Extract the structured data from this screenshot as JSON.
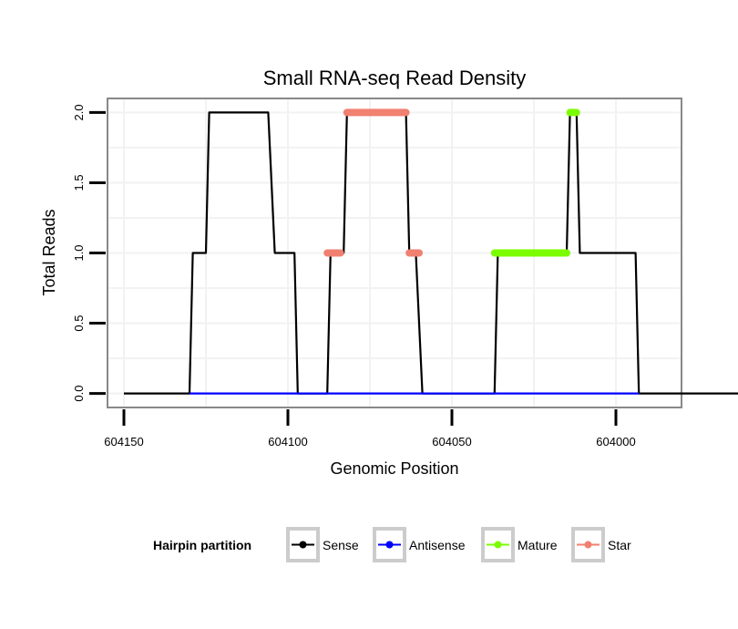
{
  "chart_data": {
    "type": "line",
    "title": "Small RNA-seq Read Density",
    "xlabel": "Genomic Position",
    "ylabel": "Total Reads",
    "x_reversed": true,
    "xlim": [
      604155,
      603980
    ],
    "ylim": [
      -0.1,
      2.1
    ],
    "x_ticks": [
      604150,
      604100,
      604050,
      604000
    ],
    "y_ticks": [
      0.0,
      0.5,
      1.0,
      1.5,
      2.0
    ],
    "y_tick_labels": [
      "0.0",
      "0.5",
      "1.0",
      "1.5",
      "2.0"
    ],
    "legend": {
      "title": "Hairpin partition",
      "position": "bottom",
      "entries": [
        "Sense",
        "Antisense",
        "Mature",
        "Star"
      ]
    },
    "series": [
      {
        "name": "Sense",
        "color": "#000000",
        "style": "line",
        "points": [
          [
            604150,
            0
          ],
          [
            604130,
            0
          ],
          [
            604129,
            1
          ],
          [
            604125,
            1
          ],
          [
            604124,
            2
          ],
          [
            604106,
            2
          ],
          [
            604104,
            1
          ],
          [
            604098,
            1
          ],
          [
            604097,
            0
          ],
          [
            604088,
            0
          ],
          [
            604087,
            1
          ],
          [
            604083,
            1
          ],
          [
            604082,
            2
          ],
          [
            604064,
            2
          ],
          [
            604063,
            1
          ],
          [
            604061,
            1
          ],
          [
            604059,
            0
          ],
          [
            604037,
            0
          ],
          [
            604036,
            1
          ],
          [
            604015,
            1
          ],
          [
            604014,
            2
          ],
          [
            604012,
            2
          ],
          [
            604011,
            1
          ],
          [
            603994,
            1
          ],
          [
            603993,
            0
          ],
          [
            603962,
            0
          ]
        ]
      },
      {
        "name": "Antisense",
        "color": "#0000ff",
        "style": "line",
        "points": [
          [
            604130,
            0
          ],
          [
            603993,
            0
          ]
        ]
      },
      {
        "name": "Mature",
        "color": "#7cfc00",
        "style": "thick",
        "segments": [
          [
            [
              604037,
              1
            ],
            [
              604015,
              1
            ]
          ],
          [
            [
              604014,
              2
            ],
            [
              604012,
              2
            ]
          ]
        ]
      },
      {
        "name": "Star",
        "color": "#f08070",
        "style": "thick",
        "segments": [
          [
            [
              604088,
              1
            ],
            [
              604084,
              1
            ]
          ],
          [
            [
              604082,
              2
            ],
            [
              604064,
              2
            ]
          ],
          [
            [
              604063,
              1
            ],
            [
              604060,
              1
            ]
          ]
        ]
      }
    ]
  }
}
